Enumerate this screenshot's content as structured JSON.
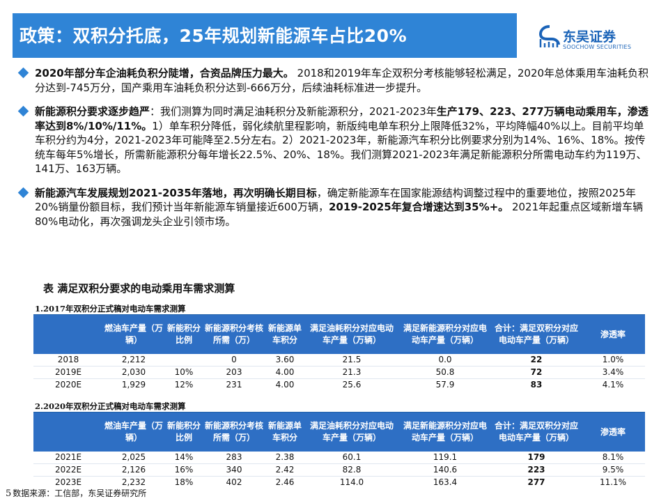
{
  "header": {
    "title": "政策：双积分托底，25年规划新能源车占比20%"
  },
  "logo": {
    "cn": "东吴证券",
    "en": "SOOCHOW SECURITIES"
  },
  "bullets": [
    {
      "bold": "2020年部分车企油耗负积分陡增，合资品牌压力最大。",
      "text": " 2018和2019年车企双积分考核能够轻松满足，2020年总体乘用车油耗负积分达到-745万分，国产乘用车油耗负积分达到-666万分，后续油耗标准进一步提升。"
    },
    {
      "bold1": "新能源积分要求逐步趋严",
      "text1": "：我们测算为同时满足油耗积分及新能源积分，2021-2023年",
      "bold2": "生产179、223、277万辆电动乘用车，渗透率达到8%/10%/11%。",
      "text2": "1）单车积分降低，弱化续航里程影响，新版纯电单车积分上限降低32%，平均降幅40%以上。目前平均单车积分约为4分，2021-2023年可能降至2.5分左右。2）2021-2023年，新能源汽车积分比例要求分别为14%、16%、18%。按传统车每年5%增长，所需新能源积分每年增长22.5%、20%、18%。我们测算2021-2023年满足新能源积分所需电动车约为119万、141万、163万辆。"
    },
    {
      "bold1": "新能源汽车发展规划2021-2035年落地，再次明确长期目标",
      "text1": "，确定新能源车在国家能源结构调整过程中的重要地位，按照2025年20%销量份额目标，我们预计当年新能源车销量接近600万辆，",
      "bold2": "2019-2025年复合增速达到35%+。",
      "text2": " 2021年起重点区域新增车辆80%电动化，再次强调龙头企业引领市场。"
    }
  ],
  "table_title": "表  满足双积分要求的电动乘用车需求测算",
  "columns": [
    "",
    "燃油车产量（万辆）",
    "新能积分比例",
    "新能源积分考核所需（万）",
    "新能源单车积分",
    "满足油耗积分对应电动车产量（万辆）",
    "满足新能源积分对应电动车产量（万辆）",
    "合计：满足双积分对应电动车产量（万辆）",
    "渗透率"
  ],
  "table1": {
    "caption": "1.2017年双积分正式稿对电动车需求测算",
    "rows": [
      [
        "2018",
        "2,212",
        "",
        "0",
        "3.60",
        "21.5",
        "0.0",
        "22",
        "1.0%"
      ],
      [
        "2019E",
        "2,030",
        "10%",
        "203",
        "4.00",
        "21.3",
        "50.8",
        "72",
        "3.4%"
      ],
      [
        "2020E",
        "1,929",
        "12%",
        "231",
        "4.00",
        "25.6",
        "57.9",
        "83",
        "4.1%"
      ]
    ]
  },
  "table2": {
    "caption": "2.2020年双积分正式稿对电动车需求测算",
    "rows": [
      [
        "2021E",
        "2,025",
        "14%",
        "283",
        "2.38",
        "60.1",
        "119.1",
        "179",
        "8.1%"
      ],
      [
        "2022E",
        "2,126",
        "16%",
        "340",
        "2.42",
        "82.8",
        "140.6",
        "223",
        "9.5%"
      ],
      [
        "2023E",
        "2,232",
        "18%",
        "402",
        "2.46",
        "114.0",
        "163.4",
        "277",
        "11.1%"
      ]
    ]
  },
  "footer": {
    "page": "5",
    "source": "数据来源：工信部，东吴证券研究所"
  },
  "colors": {
    "accent": "#2f84d6",
    "table_header": "#2e6fc4",
    "logo": "#1a63b8"
  }
}
